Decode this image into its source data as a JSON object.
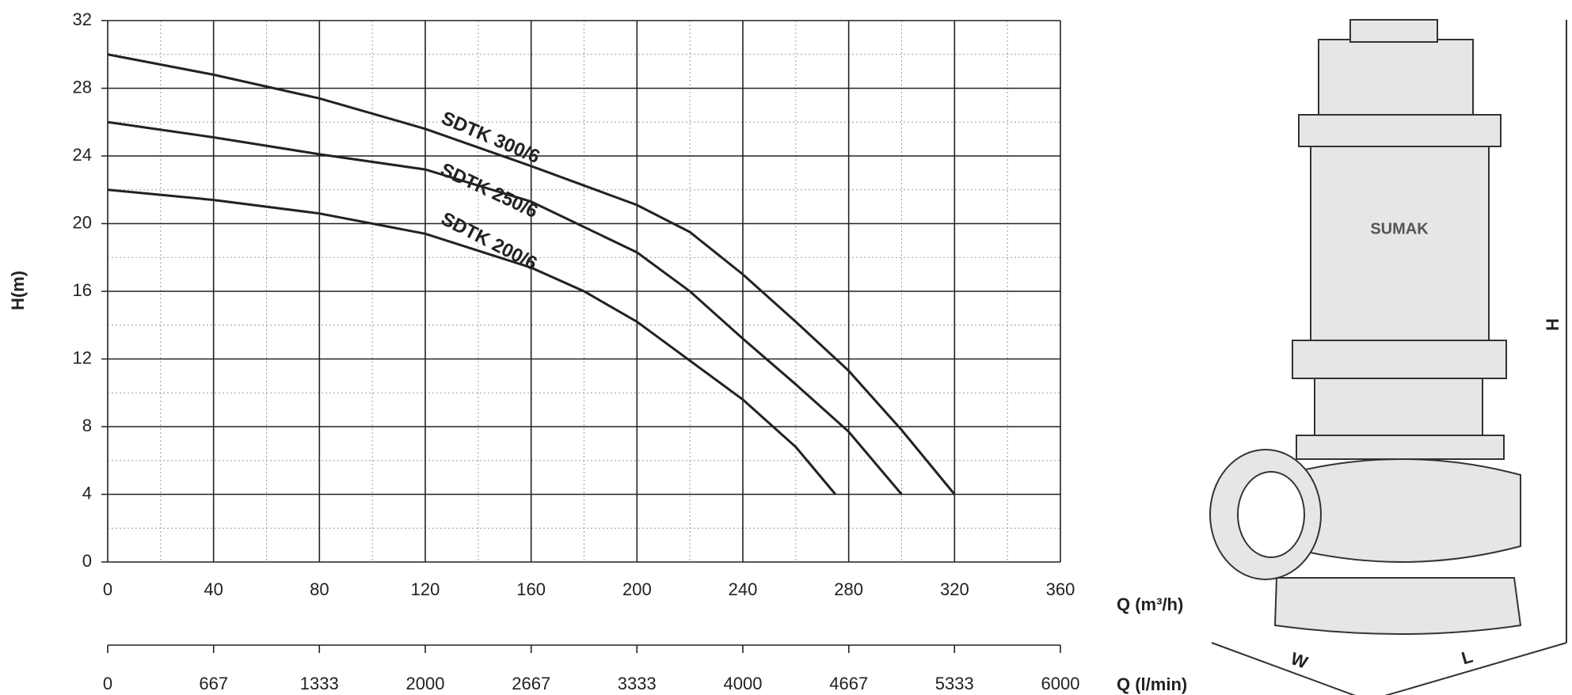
{
  "chart_data": {
    "type": "line",
    "ylabel": "H(m)",
    "xlabel": "Q (m³/h)",
    "x2label": "Q (l/min)",
    "xlim": [
      0,
      360
    ],
    "xticks": [
      0,
      40,
      80,
      120,
      160,
      200,
      240,
      280,
      320,
      360
    ],
    "x2lim": [
      0,
      6000
    ],
    "x2ticks": [
      0,
      667,
      1333,
      2000,
      2667,
      3333,
      4000,
      4667,
      5333,
      6000
    ],
    "ylim": [
      0,
      32
    ],
    "yticks": [
      0,
      4,
      8,
      12,
      16,
      20,
      24,
      28,
      32
    ],
    "grid": true,
    "series": [
      {
        "name": "SDTK 300/6",
        "color": "#222222",
        "x": [
          0,
          40,
          80,
          120,
          160,
          200,
          220,
          240,
          260,
          280,
          300,
          320
        ],
        "values": [
          30,
          28.8,
          27.4,
          25.6,
          23.4,
          21.1,
          19.5,
          17,
          14.2,
          11.3,
          7.8,
          4
        ]
      },
      {
        "name": "SDTK 250/6",
        "color": "#222222",
        "x": [
          0,
          40,
          80,
          120,
          160,
          200,
          220,
          240,
          260,
          280,
          300
        ],
        "values": [
          26,
          25.1,
          24.1,
          23.2,
          21.3,
          18.3,
          16,
          13.2,
          10.5,
          7.7,
          4
        ]
      },
      {
        "name": "SDTK 200/6",
        "color": "#222222",
        "x": [
          0,
          40,
          80,
          120,
          160,
          180,
          200,
          240,
          260,
          275
        ],
        "values": [
          22,
          21.4,
          20.6,
          19.4,
          17.4,
          16,
          14.2,
          9.6,
          6.8,
          4
        ]
      }
    ]
  },
  "pump": {
    "brand": "SUMAK",
    "height_label": "H",
    "width_label": "W",
    "length_label": "L"
  }
}
